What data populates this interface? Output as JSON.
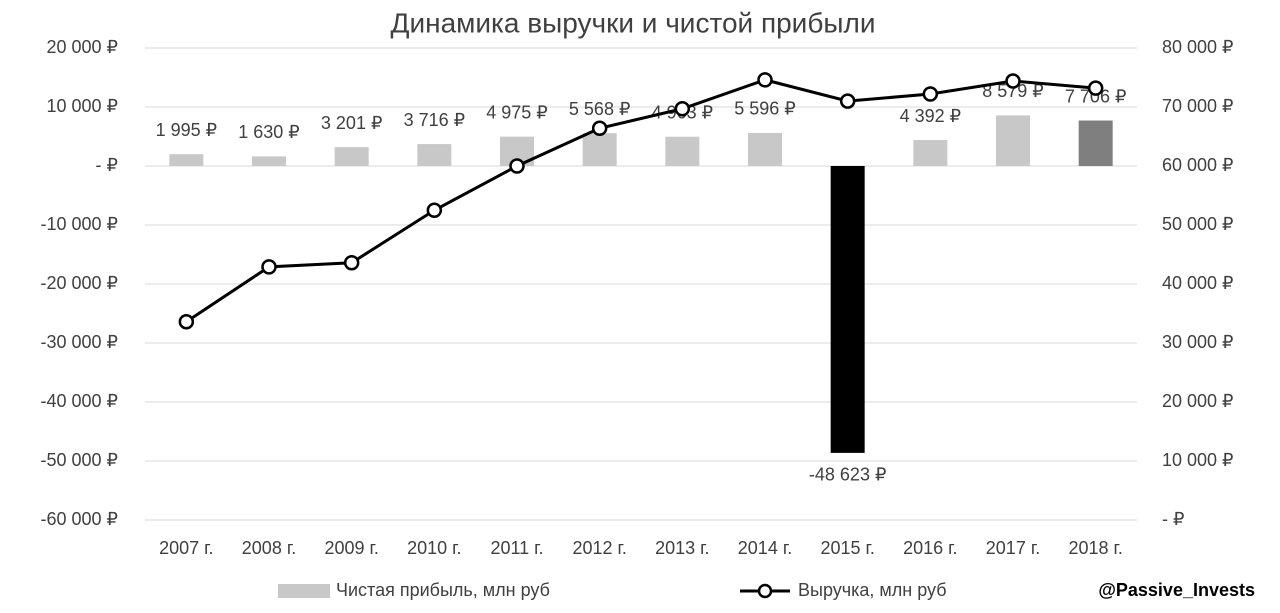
{
  "chart_data": {
    "type": "combo",
    "title": "Динамика выручки и чистой прибыли",
    "categories": [
      "2007 г.",
      "2008 г.",
      "2009 г.",
      "2010 г.",
      "2011 г.",
      "2012 г.",
      "2013 г.",
      "2014 г.",
      "2015 г.",
      "2016 г.",
      "2017 г.",
      "2018 г."
    ],
    "series": [
      {
        "name": "Чистая прибыль, млн руб",
        "type": "bar",
        "color": "#c8c8c8",
        "colors": [
          "#c8c8c8",
          "#c8c8c8",
          "#c8c8c8",
          "#c8c8c8",
          "#c8c8c8",
          "#c8c8c8",
          "#c8c8c8",
          "#c8c8c8",
          "#000000",
          "#c8c8c8",
          "#c8c8c8",
          "#7f7f7f"
        ],
        "values": [
          1995,
          1630,
          3201,
          3716,
          4975,
          5568,
          4963,
          5596,
          -48623,
          4392,
          8579,
          7706
        ],
        "value_labels": [
          "1 995 ₽",
          "1 630 ₽",
          "3 201 ₽",
          "3 716 ₽",
          "4 975 ₽",
          "5 568 ₽",
          "4 963 ₽",
          "5 596 ₽",
          "-48 623 ₽",
          "4 392 ₽",
          "8 579 ₽",
          "7 706 ₽"
        ]
      },
      {
        "name": "Выручка, млн руб",
        "type": "line",
        "axis": "y2",
        "color": "#000000",
        "values": [
          33600,
          42900,
          43600,
          52500,
          60000,
          66400,
          69700,
          74600,
          71000,
          72200,
          74400,
          73200
        ]
      }
    ],
    "ylim": [
      -60000,
      20000
    ],
    "yticks": [
      {
        "value": -60000,
        "label": "-60 000 ₽"
      },
      {
        "value": -50000,
        "label": "-50 000 ₽"
      },
      {
        "value": -40000,
        "label": "-40 000 ₽"
      },
      {
        "value": -30000,
        "label": "-30 000 ₽"
      },
      {
        "value": -20000,
        "label": "-20 000 ₽"
      },
      {
        "value": -10000,
        "label": "-10 000 ₽"
      },
      {
        "value": 0,
        "label": "-  ₽"
      },
      {
        "value": 10000,
        "label": "10 000 ₽"
      },
      {
        "value": 20000,
        "label": "20 000 ₽"
      }
    ],
    "y2lim": [
      0,
      80000
    ],
    "y2ticks": [
      {
        "value": 0,
        "label": "-  ₽"
      },
      {
        "value": 10000,
        "label": "10 000 ₽"
      },
      {
        "value": 20000,
        "label": "20 000 ₽"
      },
      {
        "value": 30000,
        "label": "30 000 ₽"
      },
      {
        "value": 40000,
        "label": "40 000 ₽"
      },
      {
        "value": 50000,
        "label": "50 000 ₽"
      },
      {
        "value": 60000,
        "label": "60 000 ₽"
      },
      {
        "value": 70000,
        "label": "70 000 ₽"
      },
      {
        "value": 80000,
        "label": "80 000 ₽"
      }
    ],
    "grid": true,
    "legend": "bottom",
    "annotation": "@Passive_Invests"
  }
}
